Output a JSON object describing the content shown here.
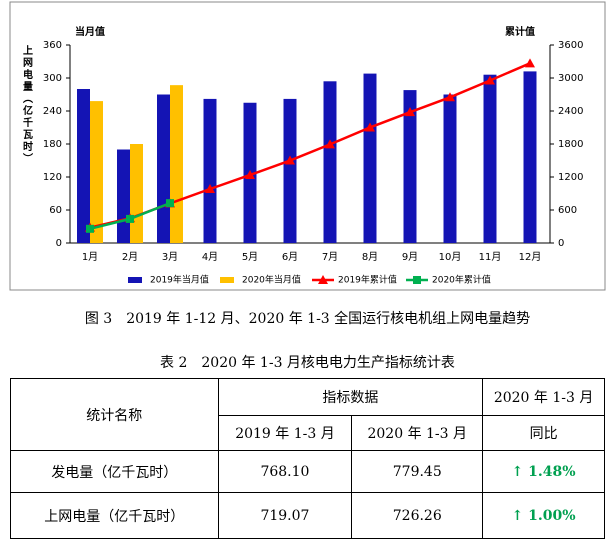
{
  "chart_data": {
    "type": "bar_line",
    "y_label": "上网电量（亿千瓦时）",
    "y_title": "当月值",
    "y2_title": "累计值",
    "categories": [
      "1月",
      "2月",
      "3月",
      "4月",
      "5月",
      "6月",
      "7月",
      "8月",
      "9月",
      "10月",
      "11月",
      "12月"
    ],
    "series": [
      {
        "name": "2019年当月值",
        "type": "bar",
        "color": "#1414b4",
        "values": [
          280,
          170,
          270,
          262,
          255,
          262,
          294,
          308,
          278,
          270,
          306,
          312
        ]
      },
      {
        "name": "2020年当月值",
        "type": "bar",
        "color": "#ffc000",
        "values": [
          258,
          180,
          287,
          null,
          null,
          null,
          null,
          null,
          null,
          null,
          null,
          null
        ]
      },
      {
        "name": "2019年累计值",
        "type": "line",
        "axis": "y2",
        "marker": "triangle",
        "color": "#ff0000",
        "values": [
          280,
          450,
          720,
          982,
          1237,
          1499,
          1793,
          2101,
          2379,
          2649,
          2955,
          3267
        ]
      },
      {
        "name": "2020年累计值",
        "type": "line",
        "axis": "y2",
        "marker": "square",
        "color": "#00b050",
        "values": [
          258,
          438,
          725,
          null,
          null,
          null,
          null,
          null,
          null,
          null,
          null,
          null
        ]
      }
    ],
    "ylim": [
      0,
      360
    ],
    "yticks": [
      0,
      60,
      120,
      180,
      240,
      300,
      360
    ],
    "y2lim": [
      0,
      3600
    ],
    "y2ticks": [
      0,
      600,
      1200,
      1800,
      2400,
      3000,
      3600
    ],
    "legend": "bottom"
  },
  "figure_caption": "图 3　2019 年 1-12 月、2020 年 1-3 全国运行核电机组上网电量趋势",
  "table_title": "表 2　2020 年 1-3 月核电电力生产指标统计表",
  "table": {
    "header": {
      "name": "统计名称",
      "group": "指标数据",
      "yoy_period": "2020 年 1-3 月",
      "col1": "2019 年 1-3 月",
      "col2": "2020 年 1-3 月",
      "yoy": "同比"
    },
    "rows": [
      [
        "发电量（亿千瓦时）",
        "768.10",
        "779.45",
        "1.48%"
      ],
      [
        "上网电量（亿千瓦时）",
        "719.07",
        "726.26",
        "1.00%"
      ]
    ]
  }
}
